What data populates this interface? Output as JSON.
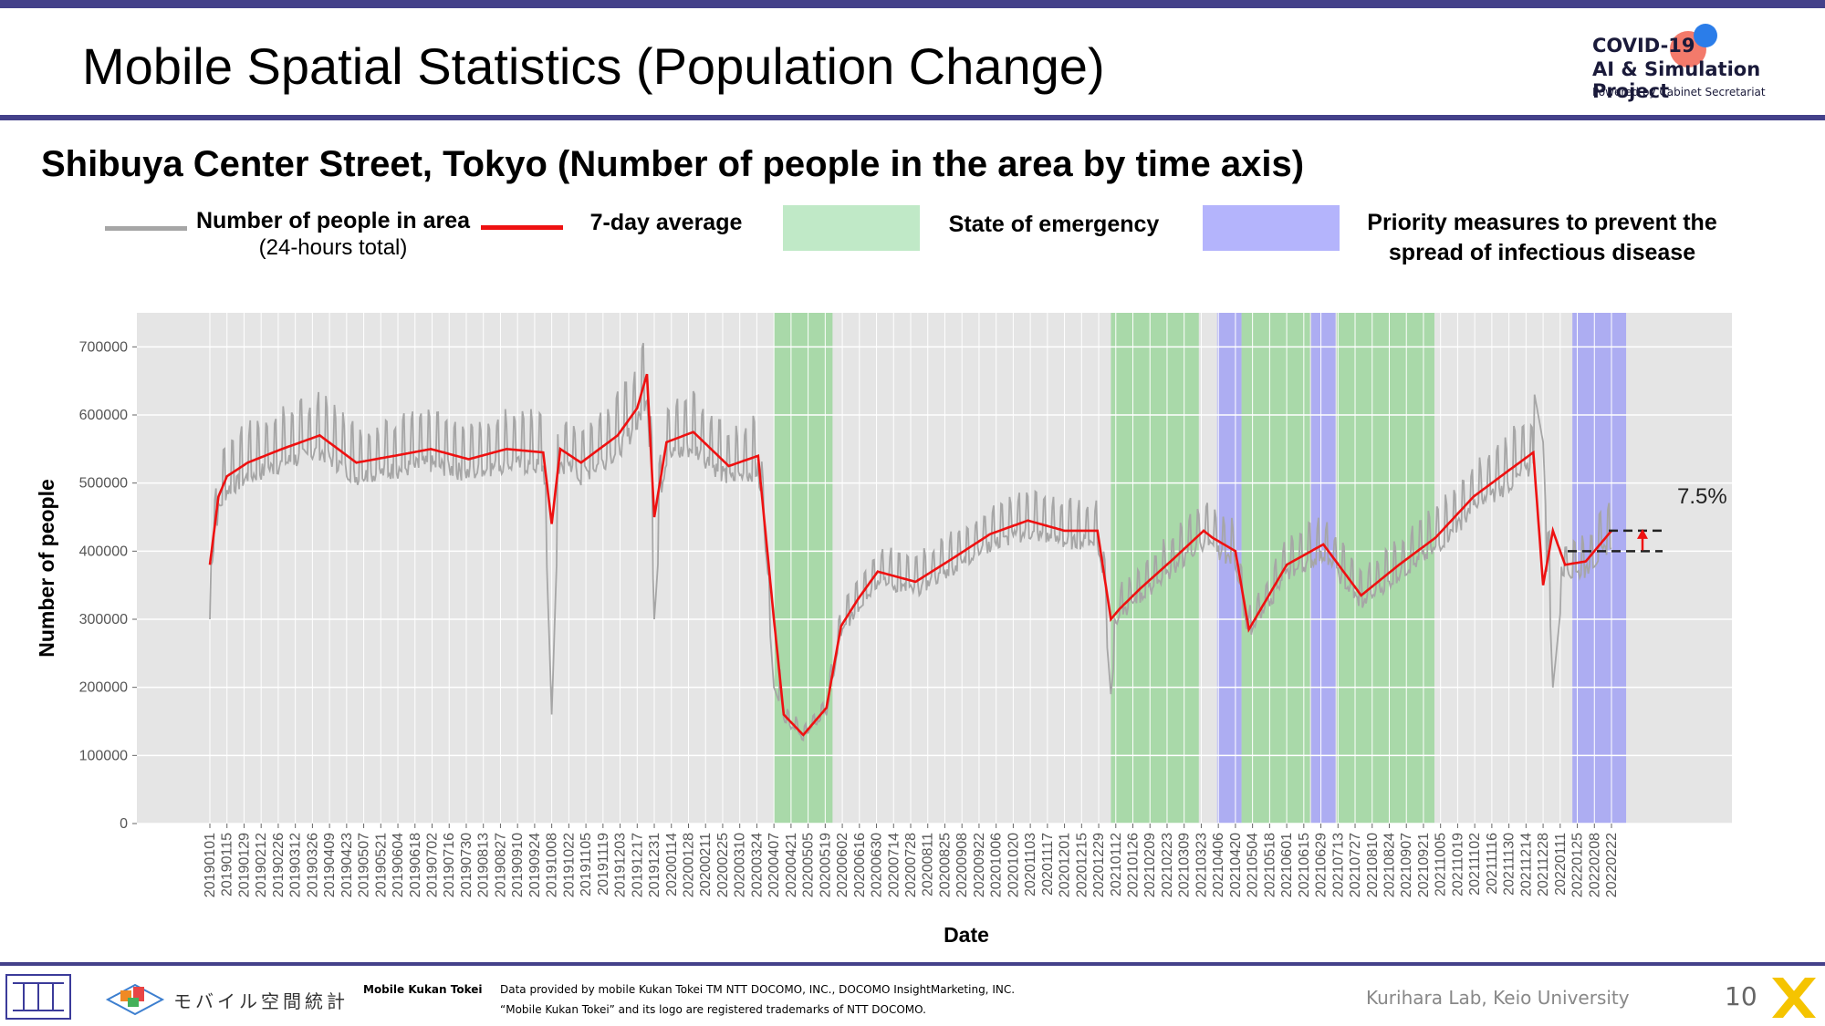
{
  "header": {
    "title": "Mobile Spatial Statistics (Population Change)",
    "logo_line1": "COVID-19",
    "logo_line2": "AI & Simulation Project",
    "logo_line3": "Powered by Cabinet Secretariat"
  },
  "subtitle": "Shibuya Center Street, Tokyo (Number of people in the area by time axis)",
  "legend": {
    "daily_line1": "Number of people in area",
    "daily_line2": "(24-hours total)",
    "avg": "7-day average",
    "emergency": "State of emergency",
    "priority_line1": "Priority measures to prevent the",
    "priority_line2": "spread of infectious disease"
  },
  "footer": {
    "logo_text": "モバイル空間統計",
    "brand": "Mobile Kukan Tokei",
    "credit1": "Data provided by mobile Kukan Tokei TM NTT DOCOMO, INC., DOCOMO InsightMarketing, INC.",
    "credit2": "“Mobile Kukan Tokei” and its logo are registered trademarks of NTT DOCOMO.",
    "lab": "Kurihara Lab, Keio University",
    "page": "10"
  },
  "colors": {
    "bar": "#44418a",
    "daily": "#a6a6a6",
    "avg": "#ee1111",
    "emergency": "#9fd79f",
    "priority": "#a3a3f5",
    "plot_bg": "#e5e5e5"
  },
  "chart_data": {
    "type": "line",
    "xlabel": "Date",
    "ylabel": "Number of people",
    "ylim": [
      0,
      750000
    ],
    "yticks": [
      0,
      100000,
      200000,
      300000,
      400000,
      500000,
      600000,
      700000
    ],
    "xticks": [
      "20190101",
      "20190115",
      "20190129",
      "20190212",
      "20190226",
      "20190312",
      "20190326",
      "20190409",
      "20190423",
      "20190507",
      "20190521",
      "20190604",
      "20190618",
      "20190702",
      "20190716",
      "20190730",
      "20190813",
      "20190827",
      "20190910",
      "20190924",
      "20191008",
      "20191022",
      "20191105",
      "20191119",
      "20191203",
      "20191217",
      "20191231",
      "20200114",
      "20200128",
      "20200211",
      "20200225",
      "20200310",
      "20200324",
      "20200407",
      "20200421",
      "20200505",
      "20200519",
      "20200602",
      "20200616",
      "20200630",
      "20200714",
      "20200728",
      "20200811",
      "20200825",
      "20200908",
      "20200922",
      "20201006",
      "20201020",
      "20201103",
      "20201117",
      "20201201",
      "20201215",
      "20201229",
      "20210112",
      "20210126",
      "20210209",
      "20210223",
      "20210309",
      "20210323",
      "20210406",
      "20210420",
      "20210504",
      "20210518",
      "20210601",
      "20210615",
      "20210629",
      "20210713",
      "20210727",
      "20210810",
      "20210824",
      "20210907",
      "20210921",
      "20211005",
      "20211019",
      "20211102",
      "20211116",
      "20211130",
      "20211214",
      "20211228",
      "20220111",
      "20220125",
      "20220208",
      "20220222"
    ],
    "series": [
      {
        "name": "Number of people in area (24-hours total)",
        "role": "daily",
        "x": [
          "20190101",
          "20190105",
          "20190115",
          "20190201",
          "20190301",
          "20190401",
          "20190501",
          "20190601",
          "20190701",
          "20190801",
          "20190901",
          "20191001",
          "20191008",
          "20191015",
          "20191101",
          "20191201",
          "20191217",
          "20191225",
          "20191231",
          "20200110",
          "20200201",
          "20200301",
          "20200325",
          "20200407",
          "20200415",
          "20200501",
          "20200520",
          "20200601",
          "20200701",
          "20200801",
          "20200901",
          "20201001",
          "20201101",
          "20201201",
          "20201228",
          "20210108",
          "20210115",
          "20210201",
          "20210301",
          "20210325",
          "20210401",
          "20210415",
          "20210501",
          "20210601",
          "20210701",
          "20210801",
          "20210901",
          "20211001",
          "20211101",
          "20211201",
          "20211220",
          "20211228",
          "20220105",
          "20220115",
          "20220201",
          "20220222"
        ],
        "values": [
          300000,
          440000,
          500000,
          540000,
          560000,
          570000,
          550000,
          540000,
          555000,
          530000,
          545000,
          540000,
          160000,
          545000,
          540000,
          600000,
          730000,
          660000,
          300000,
          570000,
          580000,
          560000,
          530000,
          200000,
          160000,
          130000,
          180000,
          300000,
          370000,
          360000,
          400000,
          430000,
          460000,
          430000,
          440000,
          190000,
          320000,
          330000,
          380000,
          470000,
          450000,
          380000,
          290000,
          370000,
          430000,
          330000,
          380000,
          450000,
          510000,
          550000,
          640000,
          560000,
          200000,
          380000,
          380000,
          460000
        ]
      },
      {
        "name": "7-day average",
        "role": "avg",
        "x": [
          "20190101",
          "20190108",
          "20190115",
          "20190201",
          "20190301",
          "20190401",
          "20190501",
          "20190601",
          "20190701",
          "20190801",
          "20190901",
          "20191001",
          "20191008",
          "20191015",
          "20191101",
          "20191201",
          "20191217",
          "20191225",
          "20191231",
          "20200110",
          "20200201",
          "20200301",
          "20200325",
          "20200407",
          "20200415",
          "20200501",
          "20200520",
          "20200601",
          "20200615",
          "20200701",
          "20200801",
          "20200901",
          "20201001",
          "20201101",
          "20201201",
          "20201228",
          "20210108",
          "20210115",
          "20210201",
          "20210301",
          "20210325",
          "20210401",
          "20210420",
          "20210501",
          "20210601",
          "20210701",
          "20210801",
          "20210901",
          "20211001",
          "20211101",
          "20211201",
          "20211220",
          "20211228",
          "20220105",
          "20220115",
          "20220201",
          "20220222"
        ],
        "values": [
          380000,
          480000,
          510000,
          530000,
          550000,
          570000,
          530000,
          540000,
          550000,
          535000,
          550000,
          545000,
          440000,
          550000,
          530000,
          570000,
          610000,
          660000,
          450000,
          560000,
          575000,
          525000,
          540000,
          300000,
          160000,
          130000,
          170000,
          290000,
          330000,
          370000,
          355000,
          390000,
          425000,
          445000,
          430000,
          430000,
          300000,
          315000,
          345000,
          390000,
          430000,
          420000,
          400000,
          285000,
          380000,
          410000,
          335000,
          380000,
          420000,
          480000,
          520000,
          545000,
          350000,
          430000,
          380000,
          385000,
          430000
        ]
      }
    ],
    "shaded_periods": [
      {
        "type": "emergency",
        "start": "20200407",
        "end": "20200525"
      },
      {
        "type": "emergency",
        "start": "20210108",
        "end": "20210321"
      },
      {
        "type": "priority",
        "start": "20210405",
        "end": "20210425"
      },
      {
        "type": "emergency",
        "start": "20210425",
        "end": "20210620"
      },
      {
        "type": "priority",
        "start": "20210621",
        "end": "20210711"
      },
      {
        "type": "emergency",
        "start": "20210712",
        "end": "20210930"
      },
      {
        "type": "priority",
        "start": "20220121",
        "end": "20220306"
      }
    ],
    "annotation": {
      "text": "7.5%",
      "from_value": 400000,
      "to_value": 430000
    }
  }
}
